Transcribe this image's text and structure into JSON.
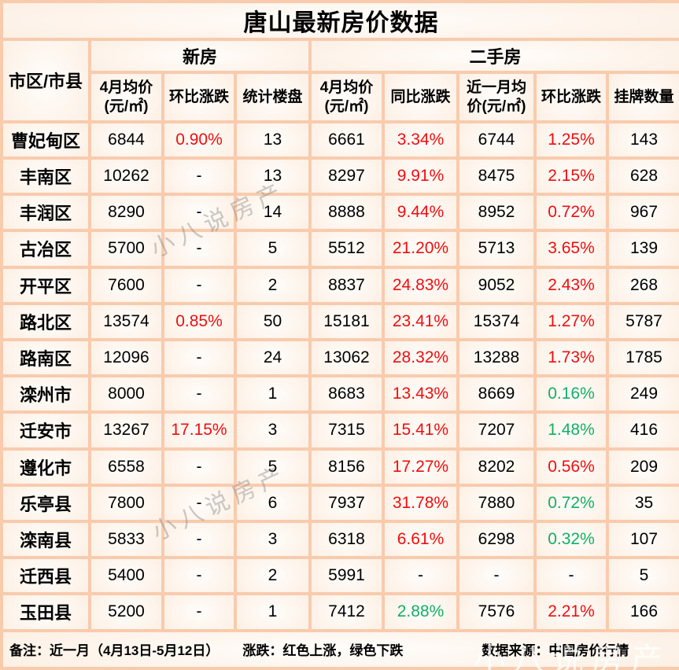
{
  "title": "唐山最新房价数据",
  "colors": {
    "rise_red": "#f20d0d",
    "fall_green": "#14ae64",
    "grid_border": "#f8cbad",
    "cell_fill": "#fbe2d0",
    "text": "#000000"
  },
  "table": {
    "corner_header": "市区/市县",
    "group_headers": [
      {
        "label": "新房",
        "span": 3
      },
      {
        "label": "二手房",
        "span": 5
      }
    ],
    "sub_headers": [
      "4月均价\n(元/㎡)",
      "环比涨跌",
      "统计楼盘",
      "4月均价\n(元/㎡)",
      "同比涨跌",
      "近一月均价(元/㎡)",
      "环比涨跌",
      "挂牌数量"
    ],
    "rows": [
      {
        "region": "曹妃甸区",
        "cells": [
          {
            "t": "6844"
          },
          {
            "t": "0.90%",
            "c": "red"
          },
          {
            "t": "13"
          },
          {
            "t": "6661"
          },
          {
            "t": "3.34%",
            "c": "red"
          },
          {
            "t": "6744"
          },
          {
            "t": "1.25%",
            "c": "red"
          },
          {
            "t": "143"
          }
        ]
      },
      {
        "region": "丰南区",
        "cells": [
          {
            "t": "10262"
          },
          {
            "t": "-"
          },
          {
            "t": "13"
          },
          {
            "t": "8297"
          },
          {
            "t": "9.91%",
            "c": "red"
          },
          {
            "t": "8475"
          },
          {
            "t": "2.15%",
            "c": "red"
          },
          {
            "t": "628"
          }
        ]
      },
      {
        "region": "丰润区",
        "cells": [
          {
            "t": "8290"
          },
          {
            "t": "-"
          },
          {
            "t": "14"
          },
          {
            "t": "8888"
          },
          {
            "t": "9.44%",
            "c": "red"
          },
          {
            "t": "8952"
          },
          {
            "t": "0.72%",
            "c": "red"
          },
          {
            "t": "967"
          }
        ]
      },
      {
        "region": "古冶区",
        "cells": [
          {
            "t": "5700"
          },
          {
            "t": "-"
          },
          {
            "t": "5"
          },
          {
            "t": "5512"
          },
          {
            "t": "21.20%",
            "c": "red"
          },
          {
            "t": "5713"
          },
          {
            "t": "3.65%",
            "c": "red"
          },
          {
            "t": "139"
          }
        ]
      },
      {
        "region": "开平区",
        "cells": [
          {
            "t": "7600"
          },
          {
            "t": "-"
          },
          {
            "t": "2"
          },
          {
            "t": "8837"
          },
          {
            "t": "24.83%",
            "c": "red"
          },
          {
            "t": "9052"
          },
          {
            "t": "2.43%",
            "c": "red"
          },
          {
            "t": "268"
          }
        ]
      },
      {
        "region": "路北区",
        "cells": [
          {
            "t": "13574"
          },
          {
            "t": "0.85%",
            "c": "red"
          },
          {
            "t": "50"
          },
          {
            "t": "15181"
          },
          {
            "t": "23.41%",
            "c": "red"
          },
          {
            "t": "15374"
          },
          {
            "t": "1.27%",
            "c": "red"
          },
          {
            "t": "5787"
          }
        ]
      },
      {
        "region": "路南区",
        "cells": [
          {
            "t": "12096"
          },
          {
            "t": "-"
          },
          {
            "t": "24"
          },
          {
            "t": "13062"
          },
          {
            "t": "28.32%",
            "c": "red"
          },
          {
            "t": "13288"
          },
          {
            "t": "1.73%",
            "c": "red"
          },
          {
            "t": "1785"
          }
        ]
      },
      {
        "region": "滦州市",
        "cells": [
          {
            "t": "8000"
          },
          {
            "t": "-"
          },
          {
            "t": "1"
          },
          {
            "t": "8683"
          },
          {
            "t": "13.43%",
            "c": "red"
          },
          {
            "t": "8669"
          },
          {
            "t": "0.16%",
            "c": "green"
          },
          {
            "t": "249"
          }
        ]
      },
      {
        "region": "迁安市",
        "cells": [
          {
            "t": "13267"
          },
          {
            "t": "17.15%",
            "c": "red"
          },
          {
            "t": "3"
          },
          {
            "t": "7315"
          },
          {
            "t": "15.41%",
            "c": "red"
          },
          {
            "t": "7207"
          },
          {
            "t": "1.48%",
            "c": "green"
          },
          {
            "t": "416"
          }
        ]
      },
      {
        "region": "遵化市",
        "cells": [
          {
            "t": "6558"
          },
          {
            "t": "-"
          },
          {
            "t": "5"
          },
          {
            "t": "8156"
          },
          {
            "t": "17.27%",
            "c": "red"
          },
          {
            "t": "8202"
          },
          {
            "t": "0.56%",
            "c": "red"
          },
          {
            "t": "209"
          }
        ]
      },
      {
        "region": "乐亭县",
        "cells": [
          {
            "t": "7800"
          },
          {
            "t": "-"
          },
          {
            "t": "6"
          },
          {
            "t": "7937"
          },
          {
            "t": "31.78%",
            "c": "red"
          },
          {
            "t": "7880"
          },
          {
            "t": "0.72%",
            "c": "green"
          },
          {
            "t": "35"
          }
        ]
      },
      {
        "region": "滦南县",
        "cells": [
          {
            "t": "5833"
          },
          {
            "t": "-"
          },
          {
            "t": "3"
          },
          {
            "t": "6318"
          },
          {
            "t": "6.61%",
            "c": "red"
          },
          {
            "t": "6298"
          },
          {
            "t": "0.32%",
            "c": "green"
          },
          {
            "t": "107"
          }
        ]
      },
      {
        "region": "迁西县",
        "cells": [
          {
            "t": "5400"
          },
          {
            "t": "-"
          },
          {
            "t": "2"
          },
          {
            "t": "5991"
          },
          {
            "t": "-"
          },
          {
            "t": "-"
          },
          {
            "t": "-"
          },
          {
            "t": "5"
          }
        ]
      },
      {
        "region": "玉田县",
        "cells": [
          {
            "t": "5200"
          },
          {
            "t": "-"
          },
          {
            "t": "1"
          },
          {
            "t": "7412"
          },
          {
            "t": "2.88%",
            "c": "green"
          },
          {
            "t": "7576"
          },
          {
            "t": "2.21%",
            "c": "red"
          },
          {
            "t": "166"
          }
        ]
      }
    ]
  },
  "footer": {
    "note": "备注：近一月（4月13日-5月12日）",
    "legend": "涨跌：红色上涨，绿色下跌",
    "source": "数据来源：中国房价行情"
  },
  "watermark": {
    "text": "小八说房产"
  }
}
